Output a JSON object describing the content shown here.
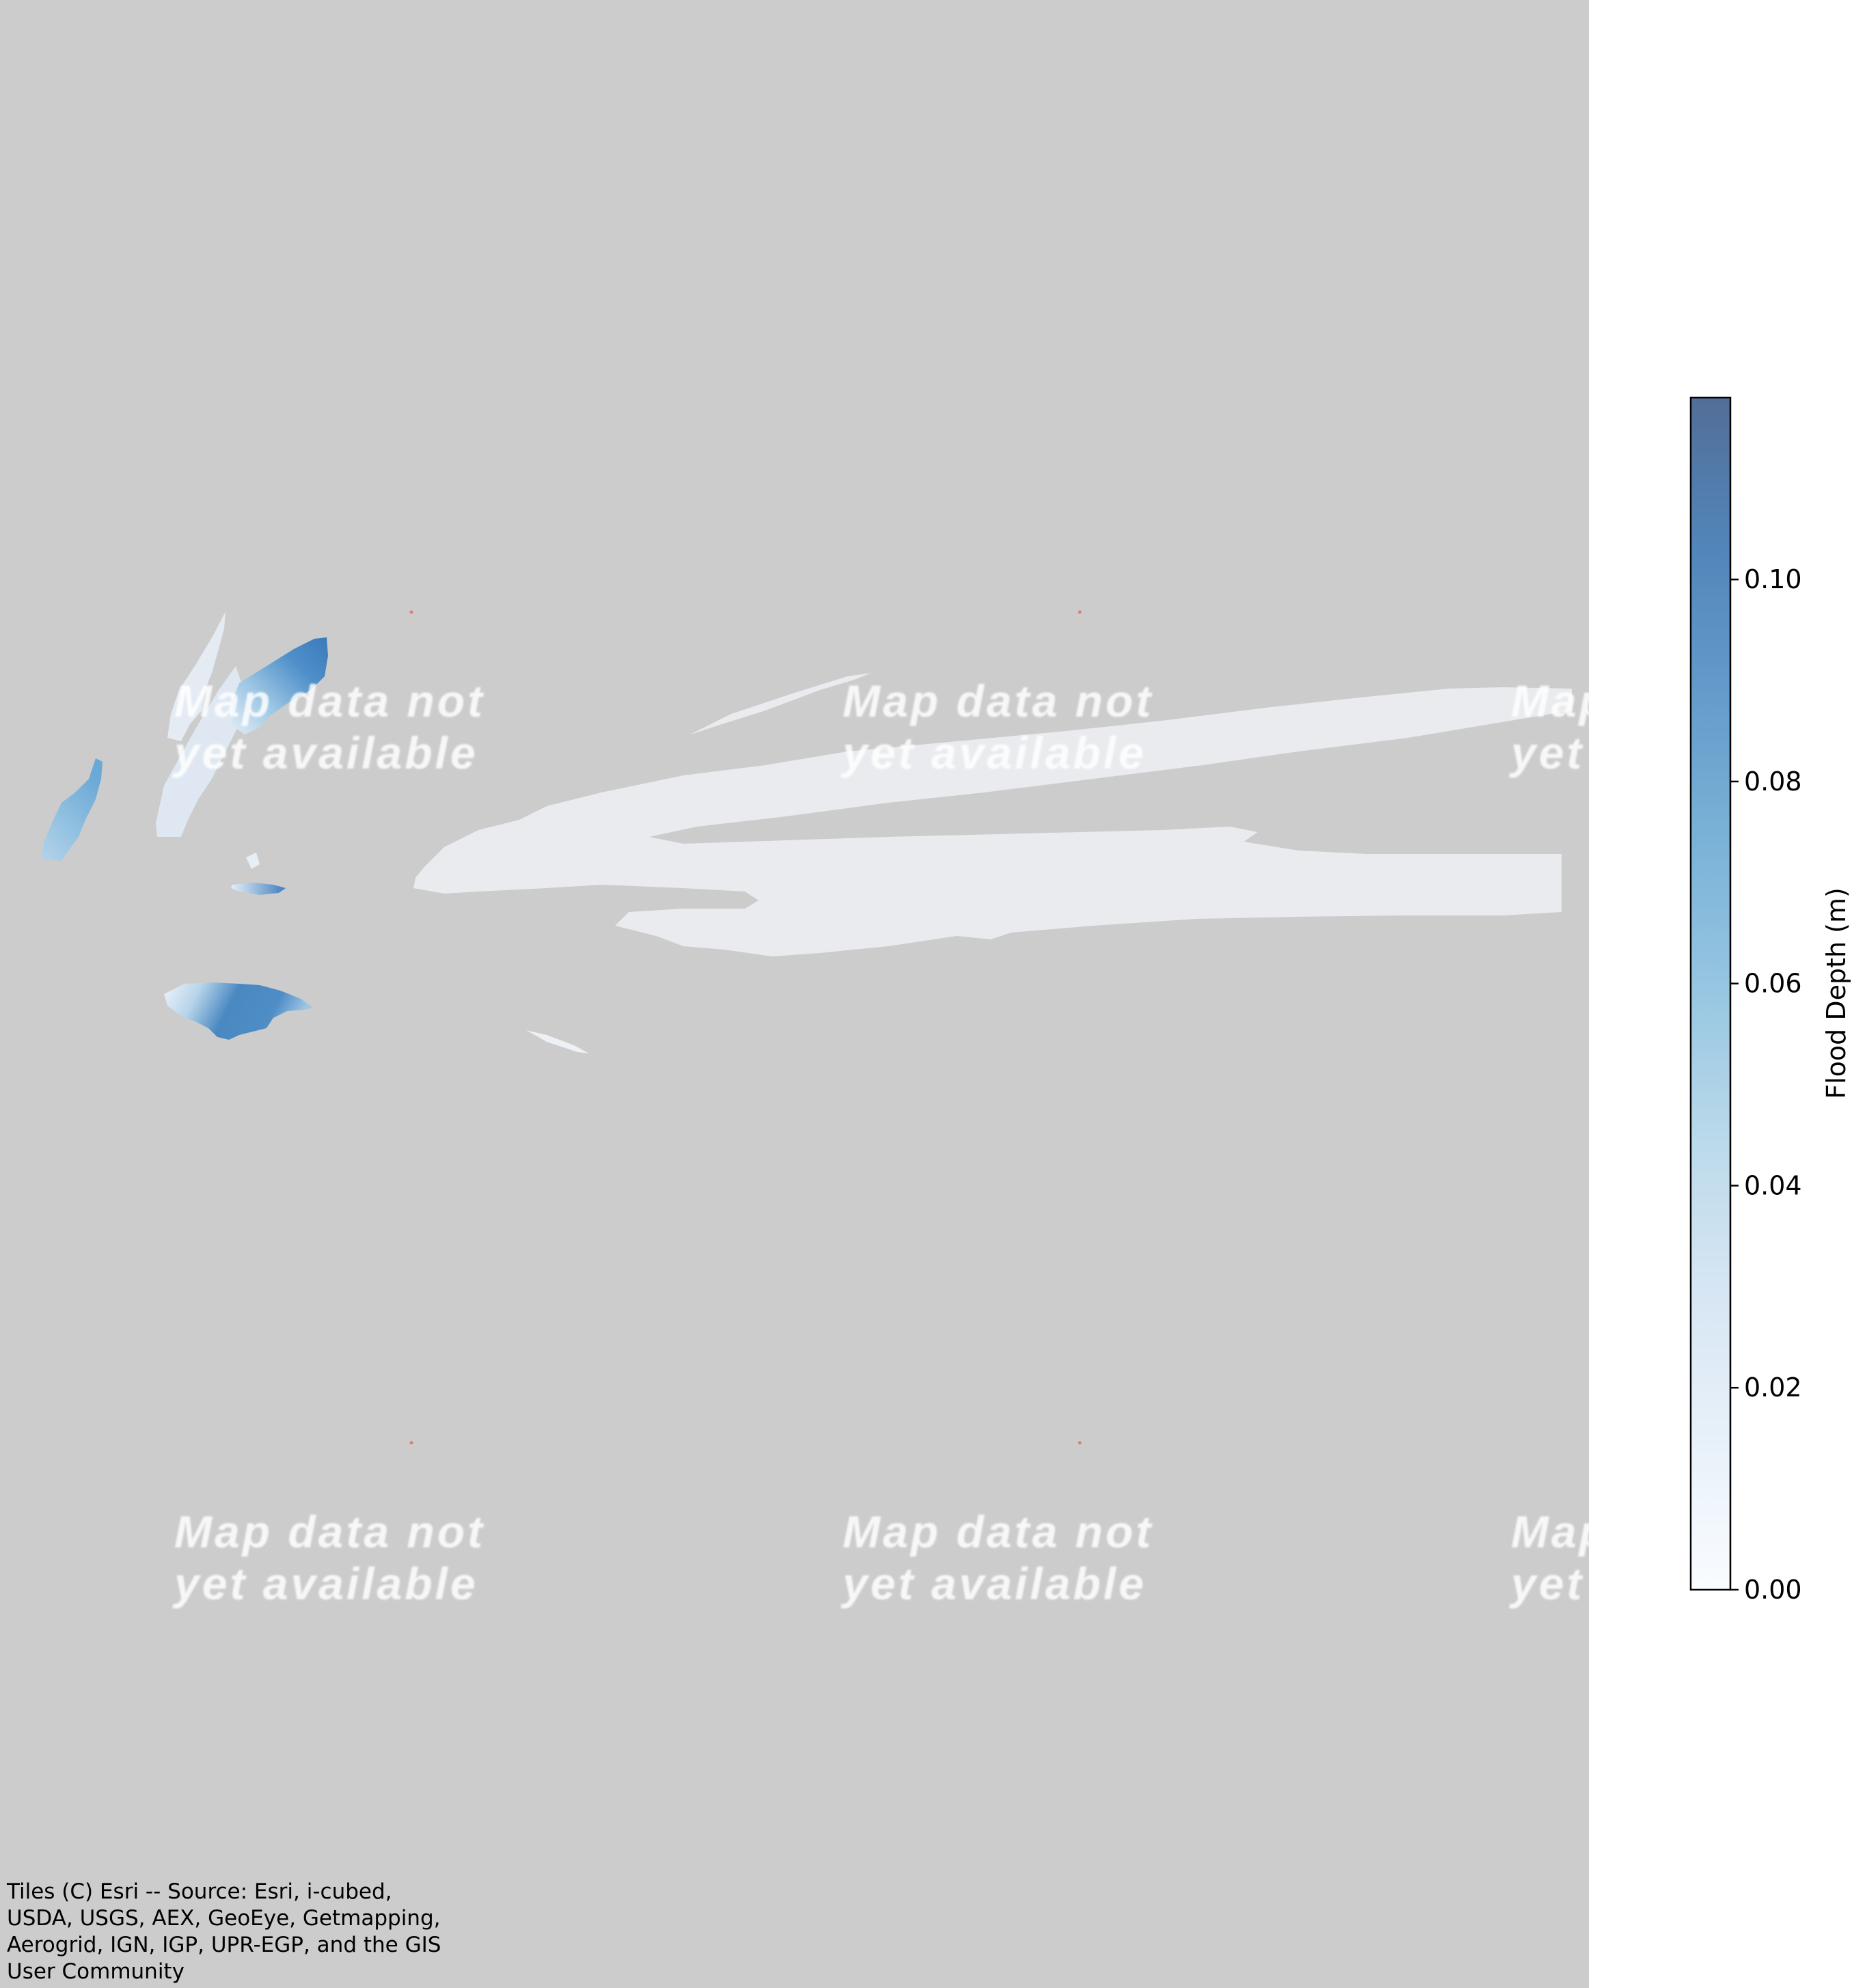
{
  "map": {
    "basemap_color": "#cccccc",
    "tile_message_lines": [
      "Map data not",
      "yet available"
    ],
    "attribution": "Tiles (C) Esri -- Source: Esri, i-cubed, USDA, USGS, AEX, GeoEye, Getmapping, Aerogrid, IGN, IGP, UPR-EGP, and the GIS User Community"
  },
  "colorbar": {
    "label": "Flood Depth (m)",
    "range": [
      0.0,
      0.118
    ],
    "ticks": [
      "0.00",
      "0.02",
      "0.04",
      "0.06",
      "0.08",
      "0.10"
    ],
    "colormap": "Blues",
    "colors": [
      "#f7fbff",
      "#deebf7",
      "#c6dbef",
      "#9ecae1",
      "#6baed6",
      "#4292c6",
      "#2171b5",
      "#08519c",
      "#08306b"
    ],
    "alpha": 0.7
  },
  "flood_areas": {
    "low_depth_color": "#e9ebef",
    "shallow_color": "#dfe8f2",
    "mid_color": "#8ab8dc",
    "deep_color": "#3f7fbf"
  }
}
